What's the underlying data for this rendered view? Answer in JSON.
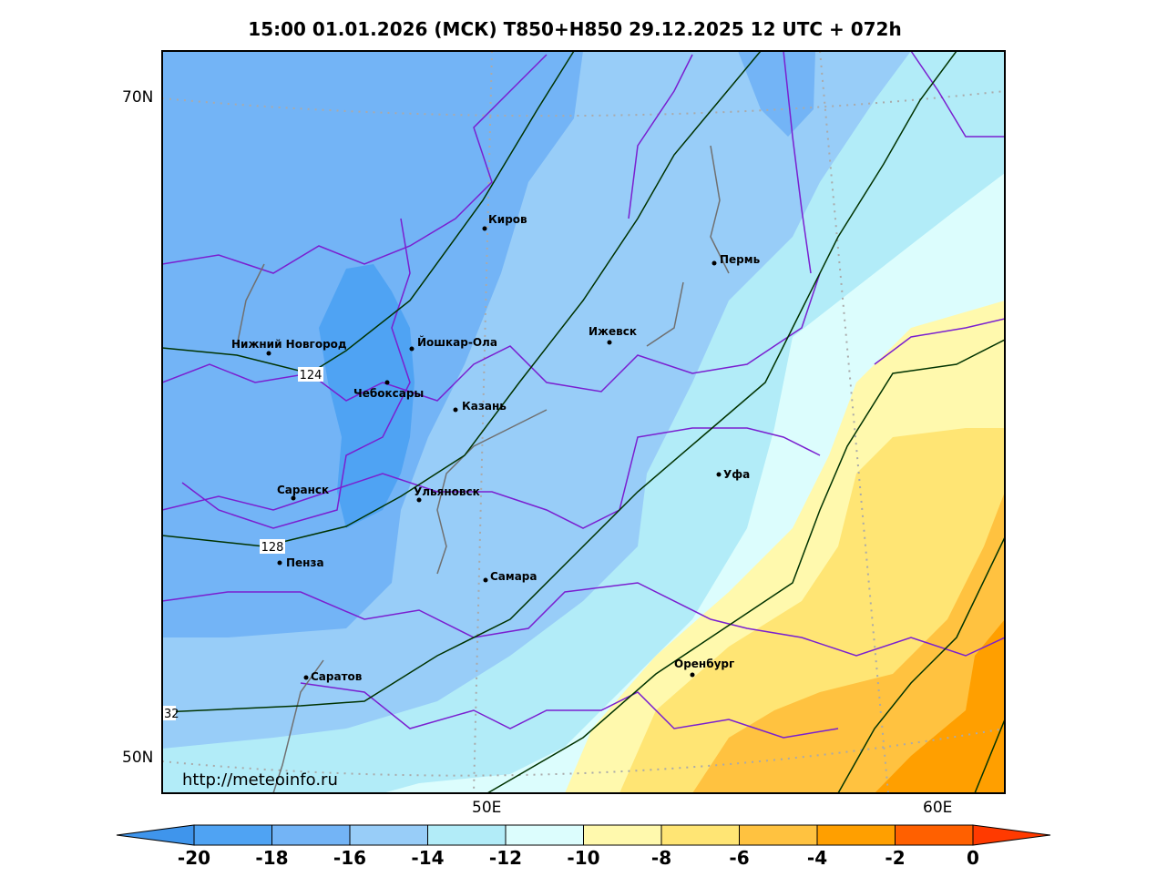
{
  "title": "15:00 01.01.2026 (МСК) T850+H850 29.12.2025 12 UTC + 072h",
  "axes": {
    "lat_labels": [
      "70N",
      "50N"
    ],
    "lon_labels": [
      "50E",
      "60E"
    ]
  },
  "watermark": "http://meteoinfo.ru",
  "cities": [
    {
      "name": "Киров"
    },
    {
      "name": "Пермь"
    },
    {
      "name": "Нижний Новгород"
    },
    {
      "name": "Йошкар-Ола"
    },
    {
      "name": "Ижевск"
    },
    {
      "name": "Чебоксары"
    },
    {
      "name": "Казань"
    },
    {
      "name": "Уфа"
    },
    {
      "name": "Саранск"
    },
    {
      "name": "Ульяновск"
    },
    {
      "name": "Пенза"
    },
    {
      "name": "Самара"
    },
    {
      "name": "Оренбург"
    },
    {
      "name": "Саратов"
    }
  ],
  "contour_labels": [
    "124",
    "128",
    "32"
  ],
  "colorbar": {
    "labels": [
      "-20",
      "-18",
      "-16",
      "-14",
      "-12",
      "-10",
      "-8",
      "-6",
      "-4",
      "-2",
      "0"
    ],
    "colors": [
      "#3f95ec",
      "#4fa3f3",
      "#73b4f6",
      "#98cdf8",
      "#b2ecf8",
      "#dcfdfd",
      "#fff9ad",
      "#ffe574",
      "#ffc240",
      "#ff9f00",
      "#ff6000",
      "#ff3a00"
    ]
  }
}
